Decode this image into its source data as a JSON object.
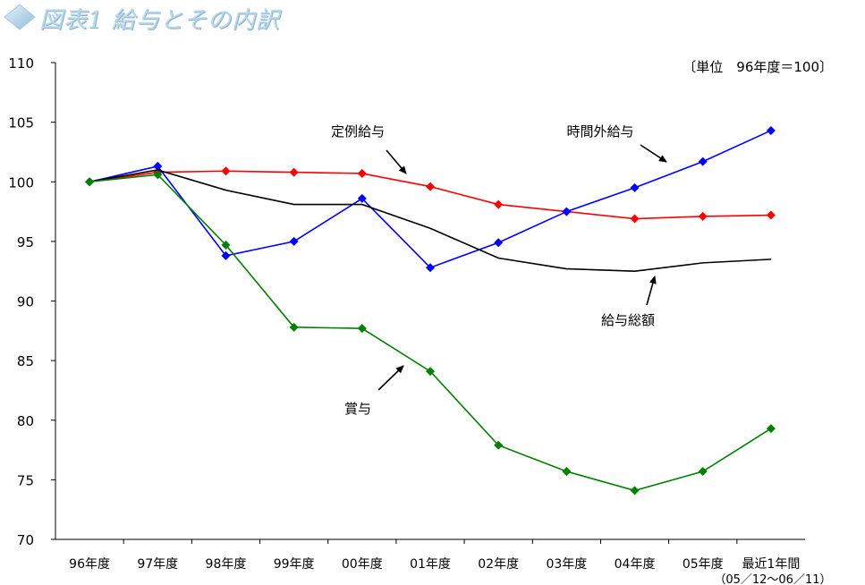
{
  "header": {
    "title": "図表1 給与とその内訳"
  },
  "chart_data": {
    "type": "line",
    "title": "図表1 給与とその内訳",
    "unit_note": "〔単位　96年度＝100〕",
    "xlabel": "",
    "ylabel": "",
    "ylim": [
      70,
      110
    ],
    "y_ticks": [
      70,
      75,
      80,
      85,
      90,
      95,
      100,
      105,
      110
    ],
    "categories": [
      "96年度",
      "97年度",
      "98年度",
      "99年度",
      "00年度",
      "01年度",
      "02年度",
      "03年度",
      "04年度",
      "05年度",
      "最近1年間"
    ],
    "last_category_sub": "（05／12〜06／11）",
    "grid": false,
    "series": [
      {
        "name": "定例給与",
        "color": "#ff0000",
        "marker": "diamond",
        "values": [
          100.0,
          100.8,
          100.9,
          100.8,
          100.7,
          99.6,
          98.1,
          97.5,
          96.9,
          97.1,
          97.2
        ]
      },
      {
        "name": "時間外給与",
        "color": "#0000ff",
        "marker": "diamond",
        "values": [
          100.0,
          101.3,
          93.8,
          95.0,
          98.6,
          92.8,
          94.9,
          97.5,
          99.5,
          101.7,
          104.3
        ]
      },
      {
        "name": "給与総額",
        "color": "#000000",
        "marker": "none",
        "values": [
          100.0,
          101.0,
          99.3,
          98.1,
          98.1,
          96.1,
          93.6,
          92.7,
          92.5,
          93.2,
          93.5
        ]
      },
      {
        "name": "賞与",
        "color": "#008000",
        "marker": "diamond",
        "values": [
          100.0,
          100.6,
          94.7,
          87.8,
          87.7,
          84.1,
          77.9,
          75.7,
          74.1,
          75.7,
          79.3
        ]
      }
    ],
    "annotations": [
      {
        "label": "定例給与",
        "series": "定例給与"
      },
      {
        "label": "時間外給与",
        "series": "時間外給与"
      },
      {
        "label": "給与総額",
        "series": "給与総額"
      },
      {
        "label": "賞与",
        "series": "賞与"
      }
    ]
  }
}
